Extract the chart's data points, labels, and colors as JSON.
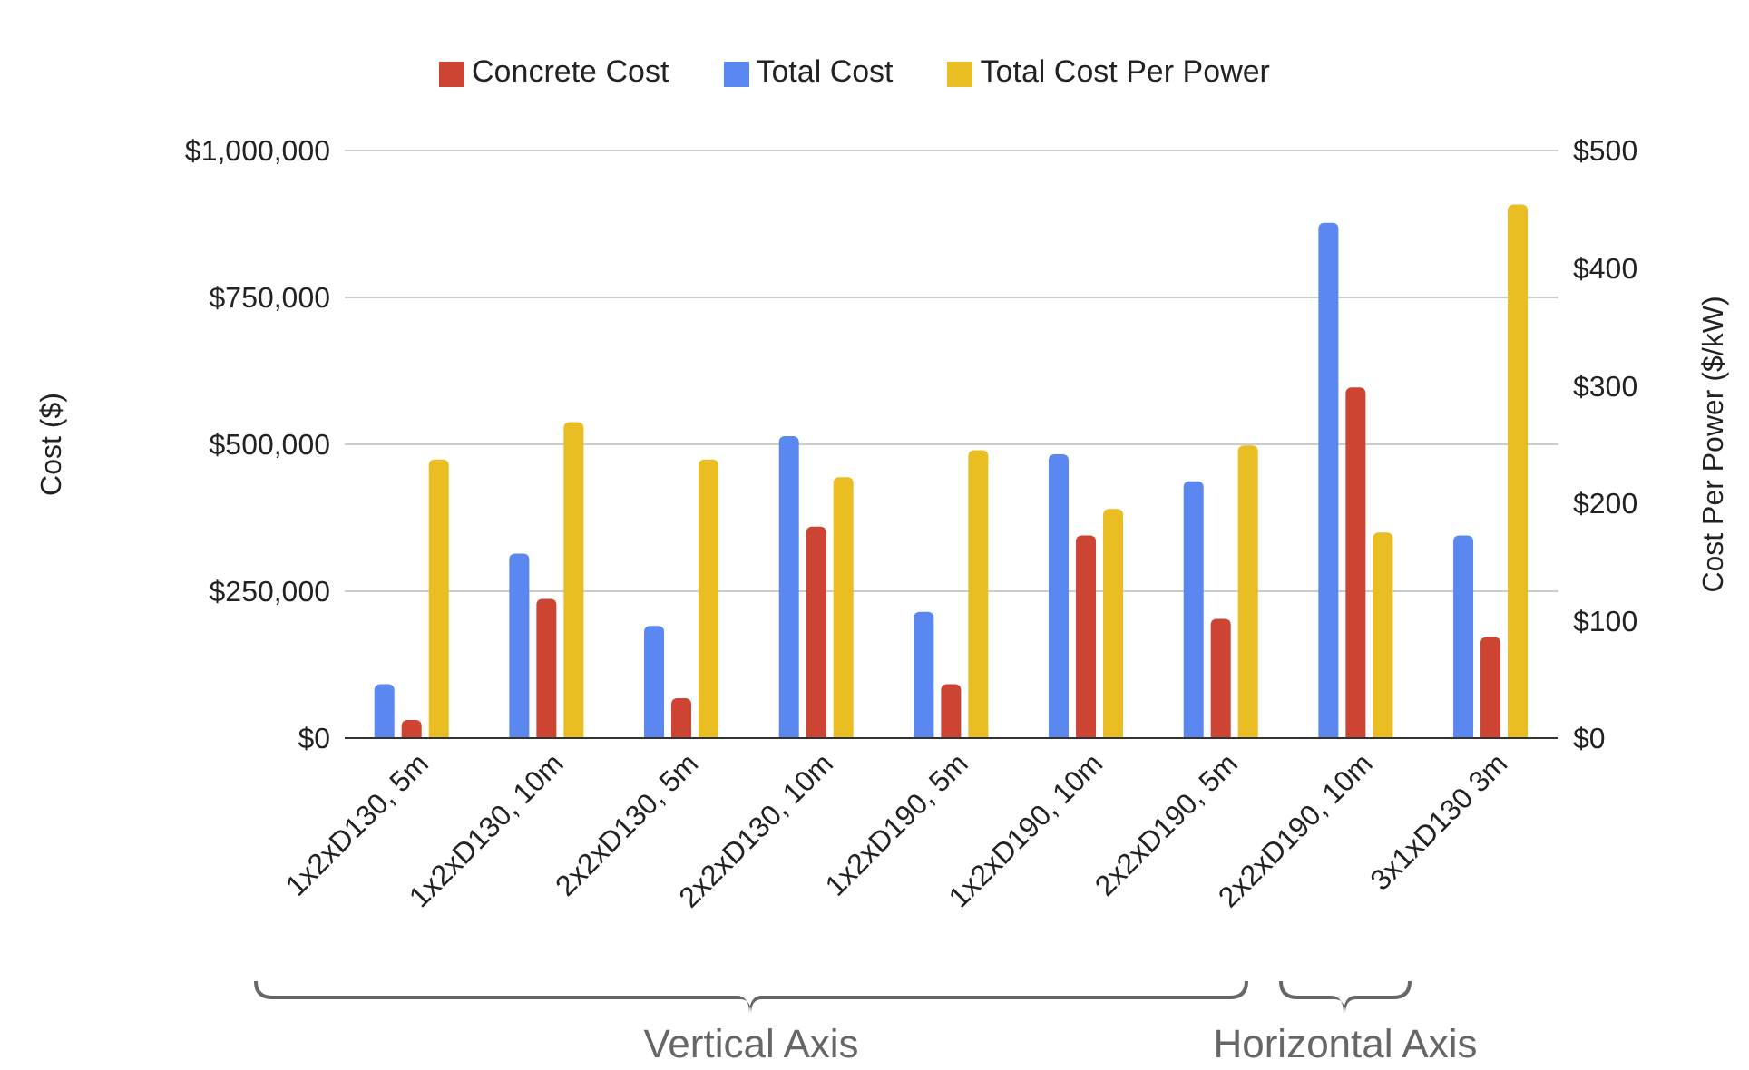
{
  "chart_data": {
    "type": "bar",
    "categories": [
      "1x2xD130, 5m",
      "1x2xD130, 10m",
      "2x2xD130, 5m",
      "2x2xD130, 10m",
      "1x2xD190, 5m",
      "1x2xD190, 10m",
      "2x2xD190, 5m",
      "2x2xD190, 10m",
      "3x1xD130 3m"
    ],
    "series": [
      {
        "name": "Total Cost",
        "color": "#5b87f0",
        "values": [
          92000,
          314000,
          191000,
          514000,
          215000,
          483000,
          437000,
          877000,
          345000
        ]
      },
      {
        "name": "Concrete Cost",
        "color": "#cd4433",
        "values": [
          31000,
          237000,
          68000,
          360000,
          92000,
          345000,
          203000,
          597000,
          172000
        ]
      },
      {
        "name": "Total Cost Per Power",
        "color": "#eabd22",
        "axis": "y2",
        "values": [
          237,
          269,
          237,
          222,
          245,
          195,
          249,
          175,
          454
        ]
      }
    ],
    "ylabel": "Cost ($)",
    "y2label": "Cost Per Power ($/kW)",
    "ylim": [
      0,
      1000000
    ],
    "yticks": [
      {
        "value": 0,
        "label": "$0"
      },
      {
        "value": 250000,
        "label": "$250,000"
      },
      {
        "value": 500000,
        "label": "$500,000"
      },
      {
        "value": 750000,
        "label": "$750,000"
      },
      {
        "value": 1000000,
        "label": "$1,000,000"
      }
    ],
    "y2lim": [
      0,
      500
    ],
    "y2ticks": [
      {
        "value": 0,
        "label": "$0"
      },
      {
        "value": 100,
        "label": "$100"
      },
      {
        "value": 200,
        "label": "$200"
      },
      {
        "value": 300,
        "label": "$300"
      },
      {
        "value": 400,
        "label": "$400"
      },
      {
        "value": 500,
        "label": "$500"
      }
    ],
    "grid": "y",
    "legend": "top",
    "annotations": [
      "Vertical Axis",
      "Horizontal Axis"
    ]
  }
}
